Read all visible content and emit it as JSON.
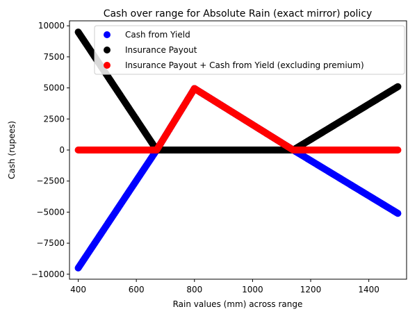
{
  "chart_data": {
    "type": "scatter",
    "title": "Cash over range for Absolute Rain (exact mirror) policy",
    "xlabel": "Rain values (mm) across range",
    "ylabel": "Cash (rupees)",
    "xlim": [
      370,
      1530
    ],
    "ylim": [
      -10400,
      10400
    ],
    "xticks": [
      400,
      600,
      800,
      1000,
      1200,
      1400
    ],
    "yticks": [
      10000,
      7500,
      5000,
      2500,
      0,
      -2500,
      -5000,
      -7500,
      -10000
    ],
    "ytick_labels": [
      "10000",
      "7500",
      "5000",
      "2500",
      "0",
      "−2500",
      "−5000",
      "−7500",
      "−10000"
    ],
    "grid": false,
    "legend_position": "upper right",
    "series": [
      {
        "name": "Cash from Yield",
        "color": "#0000ff",
        "points": [
          [
            400,
            -9500
          ],
          [
            670,
            0
          ],
          [
            800,
            4950
          ],
          [
            1140,
            0
          ],
          [
            1500,
            -5100
          ]
        ]
      },
      {
        "name": "Insurance Payout",
        "color": "#000000",
        "points": [
          [
            400,
            9500
          ],
          [
            670,
            0
          ],
          [
            1140,
            0
          ],
          [
            1500,
            5100
          ]
        ]
      },
      {
        "name": "Insurance Payout + Cash from Yield (excluding premium)",
        "color": "#ff0000",
        "points": [
          [
            400,
            0
          ],
          [
            670,
            0
          ],
          [
            800,
            4950
          ],
          [
            1140,
            0
          ],
          [
            1500,
            0
          ]
        ]
      }
    ]
  }
}
